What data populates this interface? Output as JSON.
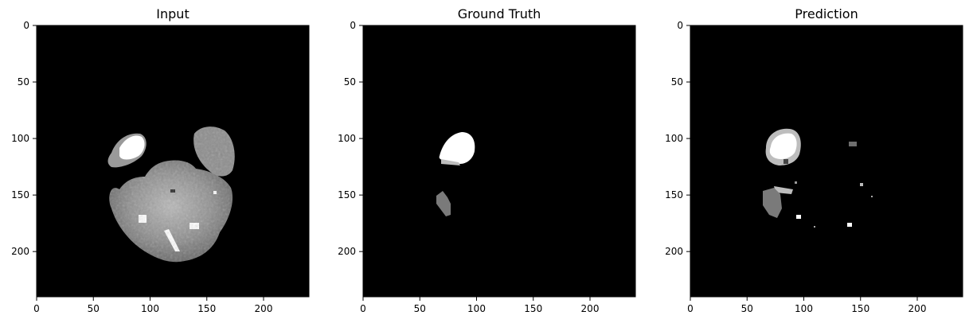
{
  "panels": [
    {
      "title": "Input",
      "xticks": [
        0,
        50,
        100,
        150,
        200
      ],
      "yticks": [
        0,
        50,
        100,
        150,
        200
      ],
      "extent": 240
    },
    {
      "title": "Ground Truth",
      "xticks": [
        0,
        50,
        100,
        150,
        200
      ],
      "yticks": [
        0,
        50,
        100,
        150,
        200
      ],
      "extent": 240
    },
    {
      "title": "Prediction",
      "xticks": [
        0,
        50,
        100,
        150,
        200
      ],
      "yticks": [
        0,
        50,
        100,
        150,
        200
      ],
      "extent": 240
    }
  ],
  "colors": {
    "background": "#000000",
    "tissue_mid": "#8a8a8a",
    "label_light": "#ffffff",
    "label_gray": "#7a7a7a",
    "label_dim": "#bdbdbd"
  }
}
